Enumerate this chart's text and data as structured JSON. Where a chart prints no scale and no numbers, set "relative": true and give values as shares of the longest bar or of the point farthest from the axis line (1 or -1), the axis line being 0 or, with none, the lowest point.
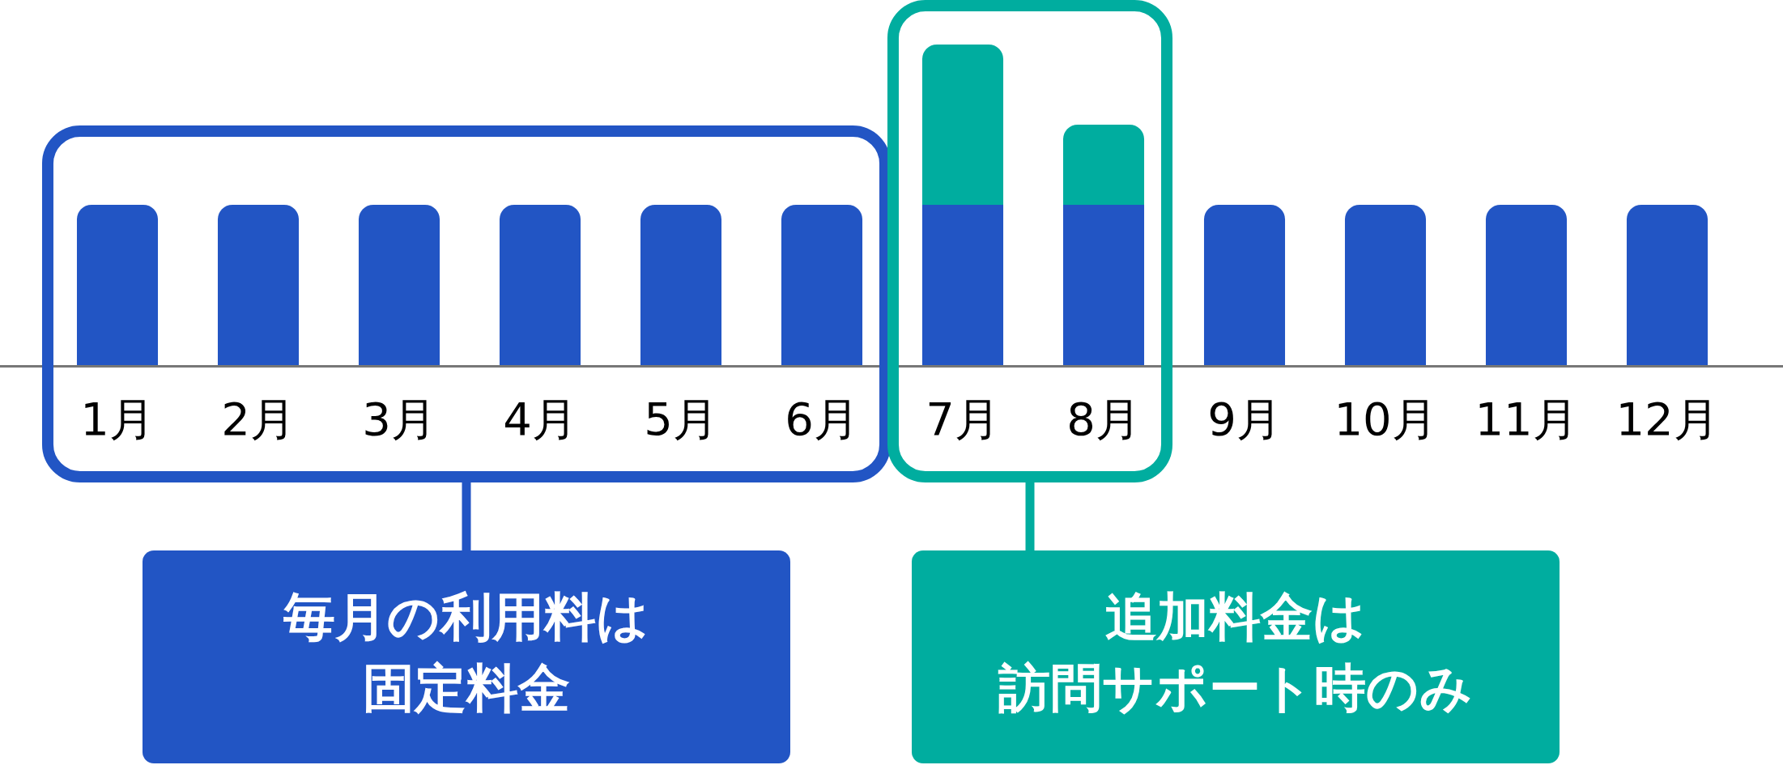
{
  "chart_data": {
    "type": "bar",
    "stacked": true,
    "relative": true,
    "categories": [
      "1月",
      "2月",
      "3月",
      "4月",
      "5月",
      "6月",
      "7月",
      "8月",
      "9月",
      "10月",
      "11月",
      "12月"
    ],
    "series": [
      {
        "color": "#2255c4",
        "values": [
          0.5,
          0.5,
          0.5,
          0.5,
          0.5,
          0.5,
          0.5,
          0.5,
          0.5,
          0.5,
          0.5,
          0.5
        ]
      },
      {
        "color": "#00ad9f",
        "values": [
          null,
          null,
          null,
          null,
          null,
          null,
          0.5,
          0.25,
          null,
          null,
          null,
          null
        ]
      }
    ],
    "annotations": [
      "毎月の利用料は固定料金",
      "追加料金は訪問サポート時のみ"
    ]
  }
}
